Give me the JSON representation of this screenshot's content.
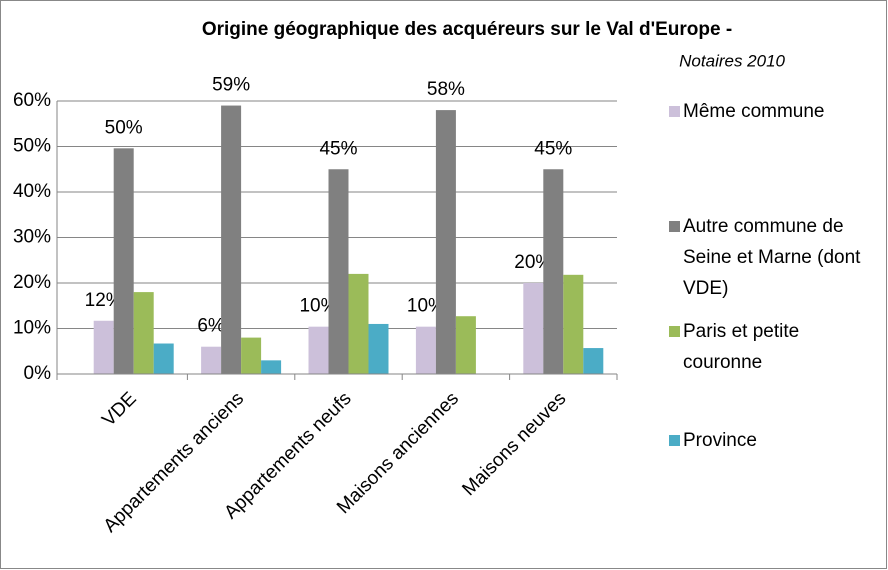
{
  "chart_data": {
    "type": "bar",
    "title": "Origine géographique des acquéreurs sur le Val d'Europe -",
    "subtitle": "Notaires 2010",
    "categories": [
      "VDE",
      "Appartements anciens",
      "Appartements neufs",
      "Maisons anciennes",
      "Maisons neuves"
    ],
    "series": [
      {
        "name": "Même commune",
        "color": "#ccc0da",
        "values": [
          11.7,
          6,
          10.4,
          10.4,
          20
        ],
        "value_labels": [
          "12%",
          "6%",
          "10%",
          "10%",
          "20%"
        ]
      },
      {
        "name": "Autre commune de Seine et Marne (dont VDE)",
        "color": "#808080",
        "values": [
          49.6,
          59,
          45,
          58,
          45
        ],
        "value_labels": [
          "50%",
          "59%",
          "45%",
          "58%",
          "45%"
        ]
      },
      {
        "name": "Paris et petite couronne",
        "color": "#9bbb59",
        "values": [
          18,
          8,
          22,
          12.7,
          21.8
        ]
      },
      {
        "name": "Province",
        "color": "#4bacc6",
        "values": [
          6.7,
          3,
          11,
          0,
          5.7
        ]
      }
    ],
    "ylim": [
      0,
      60
    ],
    "yticks": [
      {
        "value": 0,
        "label": "0%"
      },
      {
        "value": 10,
        "label": "10%"
      },
      {
        "value": 20,
        "label": "20%"
      },
      {
        "value": 30,
        "label": "30%"
      },
      {
        "value": 40,
        "label": "40%"
      },
      {
        "value": 50,
        "label": "50%"
      },
      {
        "value": 60,
        "label": "60%"
      }
    ],
    "grid": true,
    "legend": "right"
  }
}
